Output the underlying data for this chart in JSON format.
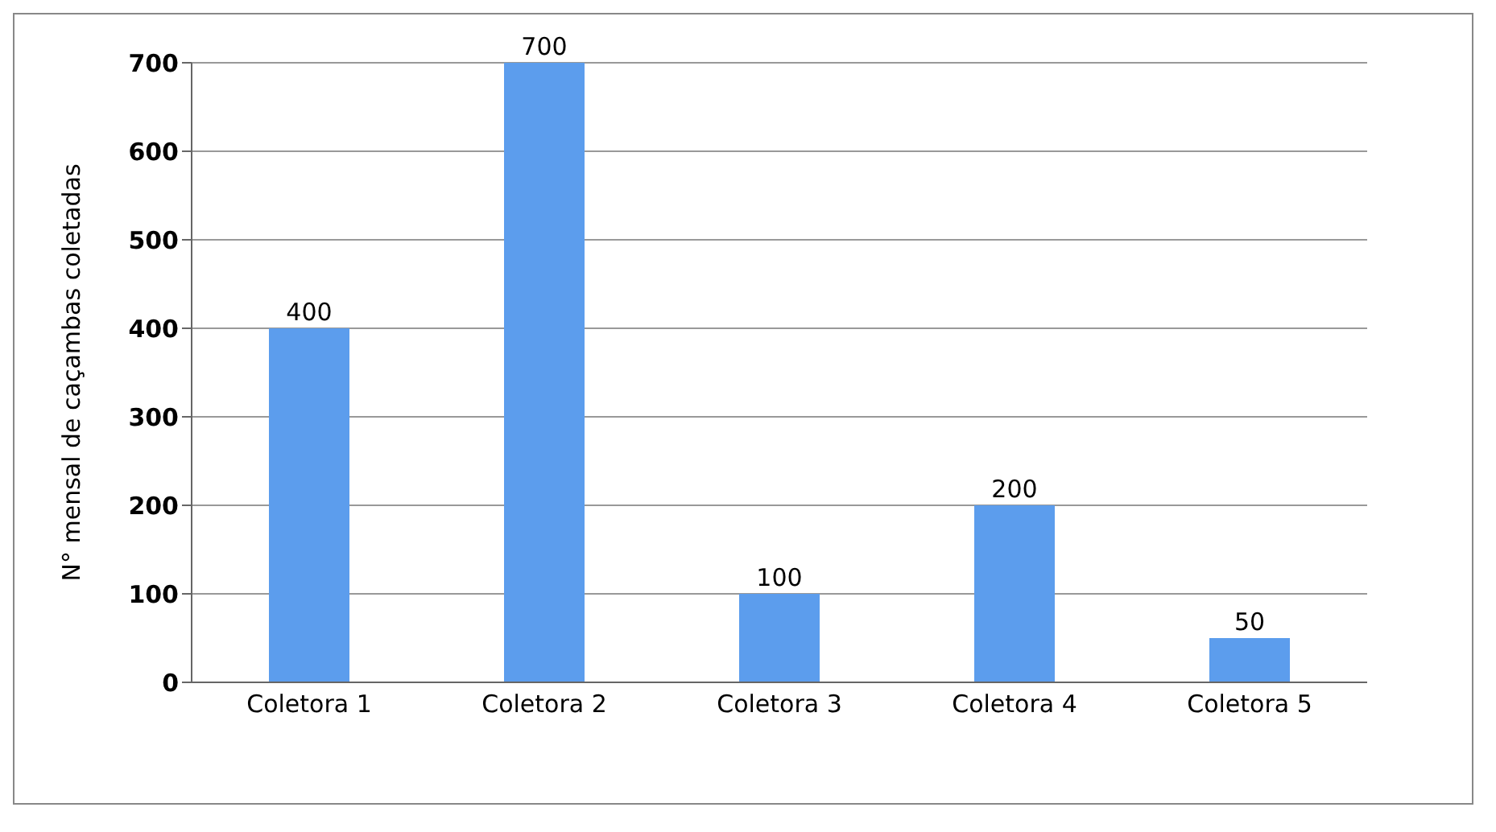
{
  "chart_data": {
    "type": "bar",
    "ylabel": "N° mensal de caçambas coletadas",
    "categories": [
      "Coletora 1",
      "Coletora 2",
      "Coletora 3",
      "Coletora 4",
      "Coletora 5"
    ],
    "values": [
      400,
      700,
      100,
      200,
      50
    ],
    "color": "#5c9ded",
    "ylim": [
      0,
      700
    ],
    "yticks": [
      0,
      100,
      200,
      300,
      400,
      500,
      600,
      700
    ],
    "grid": "y",
    "data_labels": true
  }
}
